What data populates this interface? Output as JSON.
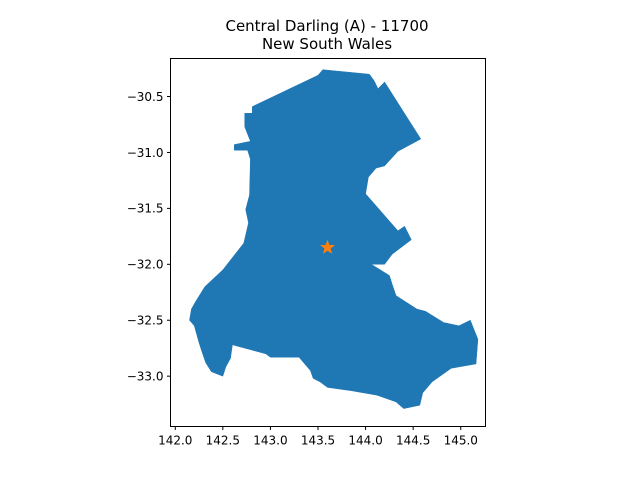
{
  "chart_data": {
    "type": "map",
    "title_lines": [
      "Central Darling (A) - 11700",
      "New South Wales"
    ],
    "xlabel": "",
    "ylabel": "",
    "xlim": [
      141.95,
      145.26
    ],
    "ylim": [
      -33.45,
      -30.16
    ],
    "x_ticks": [
      142.0,
      142.5,
      143.0,
      143.5,
      144.0,
      144.5,
      145.0
    ],
    "x_tick_labels": [
      "142.0",
      "142.5",
      "143.0",
      "143.5",
      "144.0",
      "144.5",
      "145.0"
    ],
    "y_ticks": [
      -30.5,
      -31.0,
      -31.5,
      -32.0,
      -32.5,
      -33.0
    ],
    "y_tick_labels": [
      "−30.5",
      "−31.0",
      "−31.5",
      "−32.0",
      "−32.5",
      "−33.0"
    ],
    "grid": false,
    "region": {
      "name": "Central Darling (A)",
      "code": "11700",
      "fill_color": "#1f77b4",
      "boundary_lon_lat": [
        [
          142.81,
          -30.59
        ],
        [
          143.5,
          -30.31
        ],
        [
          143.55,
          -30.26
        ],
        [
          144.04,
          -30.3
        ],
        [
          144.09,
          -30.36
        ],
        [
          144.13,
          -30.43
        ],
        [
          144.2,
          -30.37
        ],
        [
          144.58,
          -30.88
        ],
        [
          144.34,
          -30.99
        ],
        [
          144.2,
          -31.12
        ],
        [
          144.11,
          -31.14
        ],
        [
          144.03,
          -31.22
        ],
        [
          144.0,
          -31.37
        ],
        [
          144.34,
          -31.7
        ],
        [
          144.41,
          -31.66
        ],
        [
          144.48,
          -31.78
        ],
        [
          144.28,
          -31.91
        ],
        [
          144.2,
          -32.0
        ],
        [
          144.06,
          -32.0
        ],
        [
          144.25,
          -32.1
        ],
        [
          144.28,
          -32.18
        ],
        [
          144.32,
          -32.28
        ],
        [
          144.54,
          -32.4
        ],
        [
          144.63,
          -32.42
        ],
        [
          144.82,
          -32.52
        ],
        [
          144.98,
          -32.55
        ],
        [
          145.1,
          -32.5
        ],
        [
          145.18,
          -32.67
        ],
        [
          145.16,
          -32.89
        ],
        [
          144.9,
          -32.93
        ],
        [
          144.7,
          -33.05
        ],
        [
          144.6,
          -33.15
        ],
        [
          144.57,
          -33.26
        ],
        [
          144.4,
          -33.29
        ],
        [
          144.32,
          -33.23
        ],
        [
          144.12,
          -33.17
        ],
        [
          143.85,
          -33.13
        ],
        [
          143.6,
          -33.1
        ],
        [
          143.52,
          -33.05
        ],
        [
          143.45,
          -33.02
        ],
        [
          143.42,
          -32.95
        ],
        [
          143.3,
          -32.83
        ],
        [
          143.0,
          -32.83
        ],
        [
          142.95,
          -32.8
        ],
        [
          142.6,
          -32.72
        ],
        [
          142.58,
          -32.84
        ],
        [
          142.53,
          -32.92
        ],
        [
          142.5,
          -33.0
        ],
        [
          142.38,
          -32.96
        ],
        [
          142.32,
          -32.88
        ],
        [
          142.28,
          -32.78
        ],
        [
          142.25,
          -32.7
        ],
        [
          142.2,
          -32.55
        ],
        [
          142.15,
          -32.5
        ],
        [
          142.17,
          -32.4
        ],
        [
          142.21,
          -32.34
        ],
        [
          142.31,
          -32.2
        ],
        [
          142.5,
          -32.05
        ],
        [
          142.72,
          -31.81
        ],
        [
          142.77,
          -31.63
        ],
        [
          142.74,
          -31.51
        ],
        [
          142.78,
          -31.38
        ],
        [
          142.79,
          -31.06
        ],
        [
          142.76,
          -30.98
        ],
        [
          142.62,
          -30.98
        ],
        [
          142.62,
          -30.93
        ],
        [
          142.79,
          -30.9
        ],
        [
          142.73,
          -30.77
        ],
        [
          142.73,
          -30.65
        ],
        [
          142.81,
          -30.65
        ]
      ]
    },
    "marker": {
      "shape": "star",
      "color": "#ff7f0e",
      "lon": 143.6,
      "lat": -31.85
    }
  }
}
